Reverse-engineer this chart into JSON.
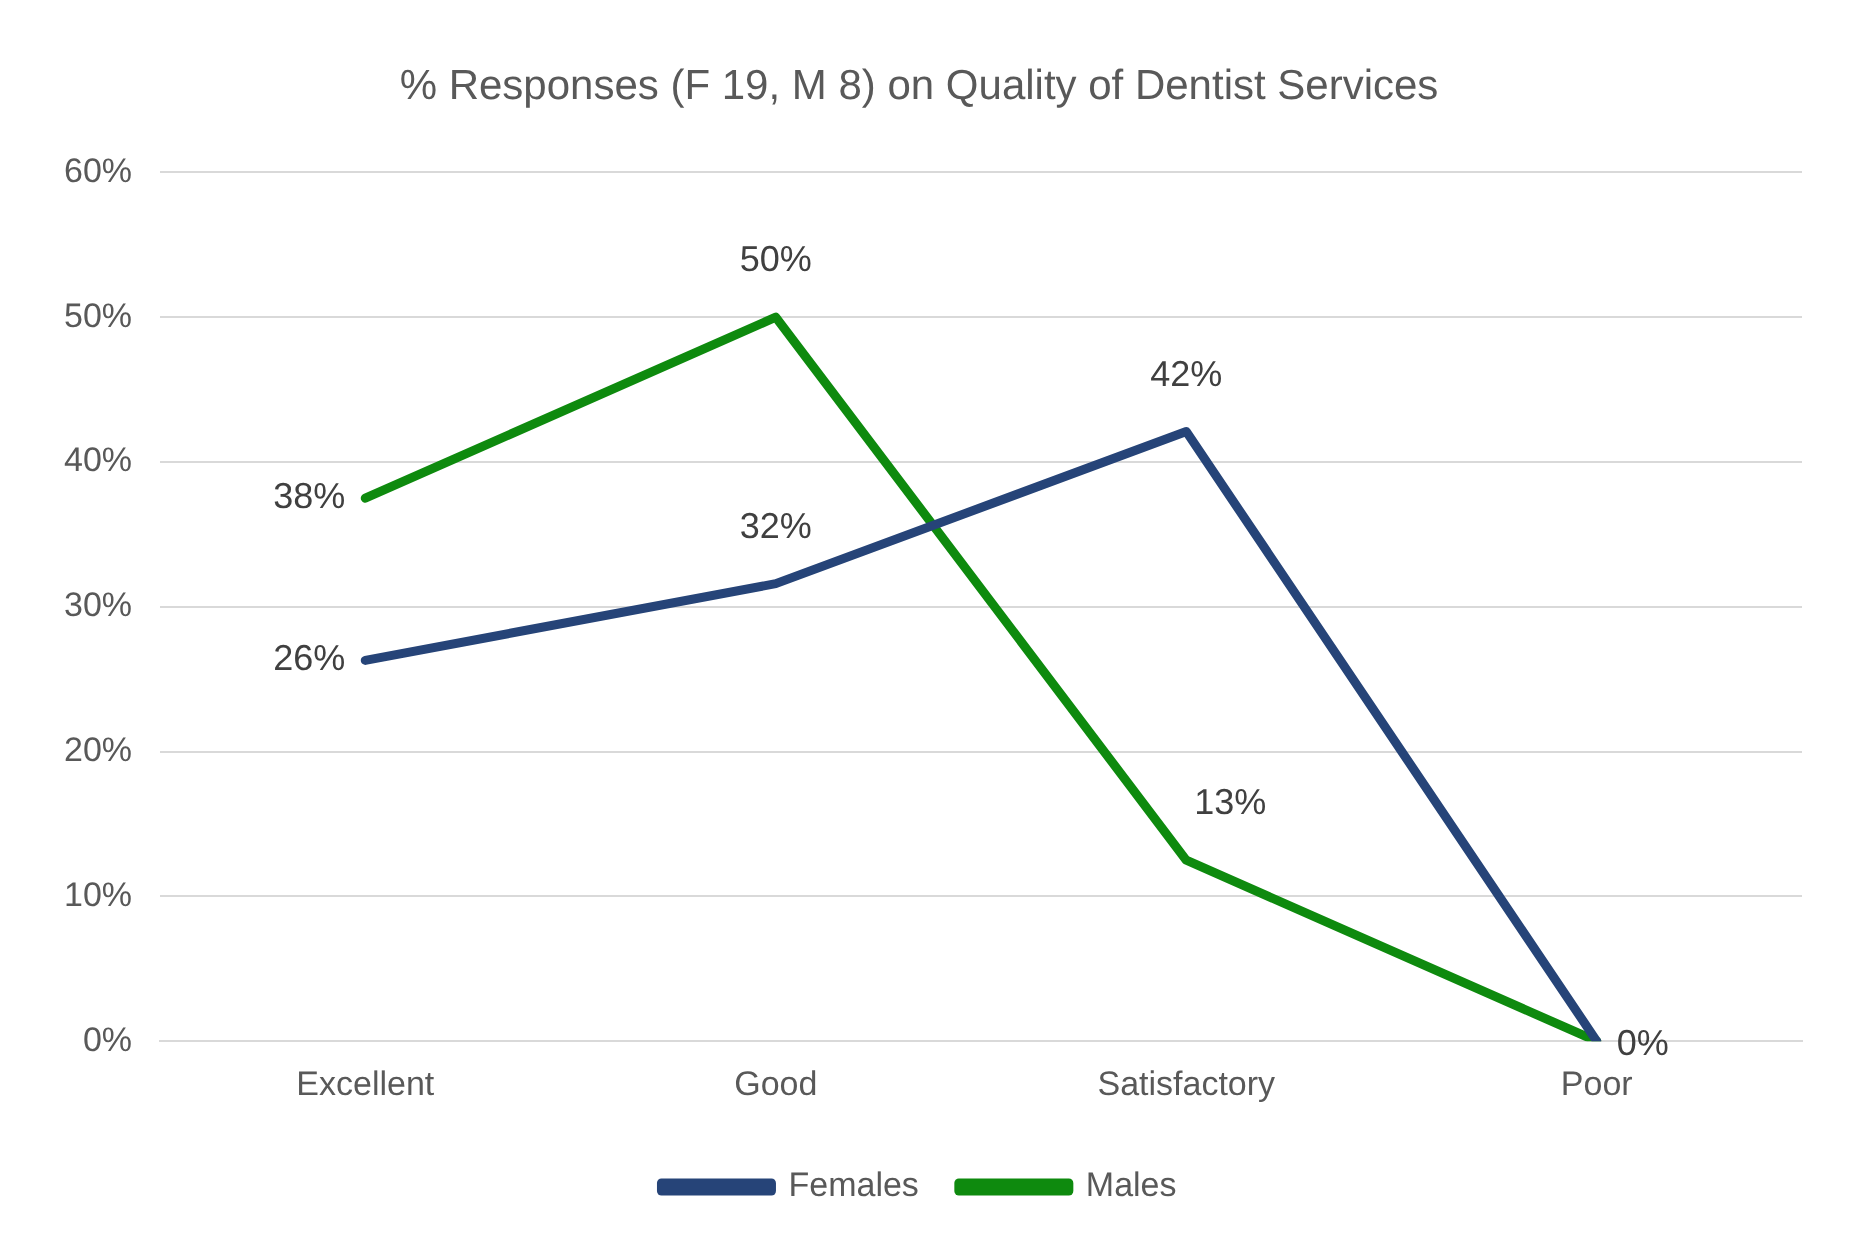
{
  "chart_data": {
    "type": "line",
    "title": "% Responses (F 19, M 8) on Quality of Dentist Services",
    "categories": [
      "Excellent",
      "Good",
      "Satisfactory",
      "Poor"
    ],
    "series": [
      {
        "name": "Females",
        "color": "#264478",
        "values": [
          26.3,
          31.6,
          42.1,
          0
        ],
        "value_labels": [
          "26%",
          "32%",
          "42%",
          "0%"
        ]
      },
      {
        "name": "Males",
        "color": "#0e8a0e",
        "values": [
          37.5,
          50,
          12.5,
          0
        ],
        "value_labels": [
          "38%",
          "50%",
          "13%",
          null
        ]
      }
    ],
    "ylim": [
      0,
      60
    ],
    "yticks": [
      {
        "value": 0,
        "label": "0%"
      },
      {
        "value": 10,
        "label": "10%"
      },
      {
        "value": 20,
        "label": "20%"
      },
      {
        "value": 30,
        "label": "30%"
      },
      {
        "value": 40,
        "label": "40%"
      },
      {
        "value": 50,
        "label": "50%"
      },
      {
        "value": 60,
        "label": "60%"
      }
    ],
    "grid": "y",
    "legend": "bottom",
    "marker": "none",
    "line_style": "solid"
  }
}
